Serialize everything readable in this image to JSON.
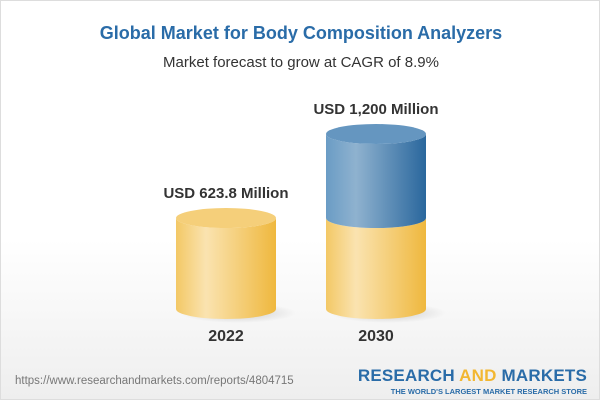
{
  "title": "Global Market for Body Composition Analyzers",
  "subtitle": "Market forecast to grow at CAGR of 8.9%",
  "chart_data": {
    "type": "bar",
    "style": "3d-cylinder",
    "categories": [
      "2022",
      "2030"
    ],
    "values": [
      623.8,
      1200
    ],
    "unit": "USD Million",
    "data_labels": [
      "USD 623.8 Million",
      "USD 1,200 Million"
    ],
    "colors": {
      "base": "#f2c35a",
      "growth": "#3f7fb3"
    },
    "grid": false
  },
  "footer": {
    "url": "https://www.researchandmarkets.com/reports/4804715",
    "logo": {
      "part1": "RESEARCH ",
      "part2": "AND",
      "part3": " MARKETS",
      "tagline": "THE WORLD'S LARGEST MARKET RESEARCH STORE"
    }
  }
}
